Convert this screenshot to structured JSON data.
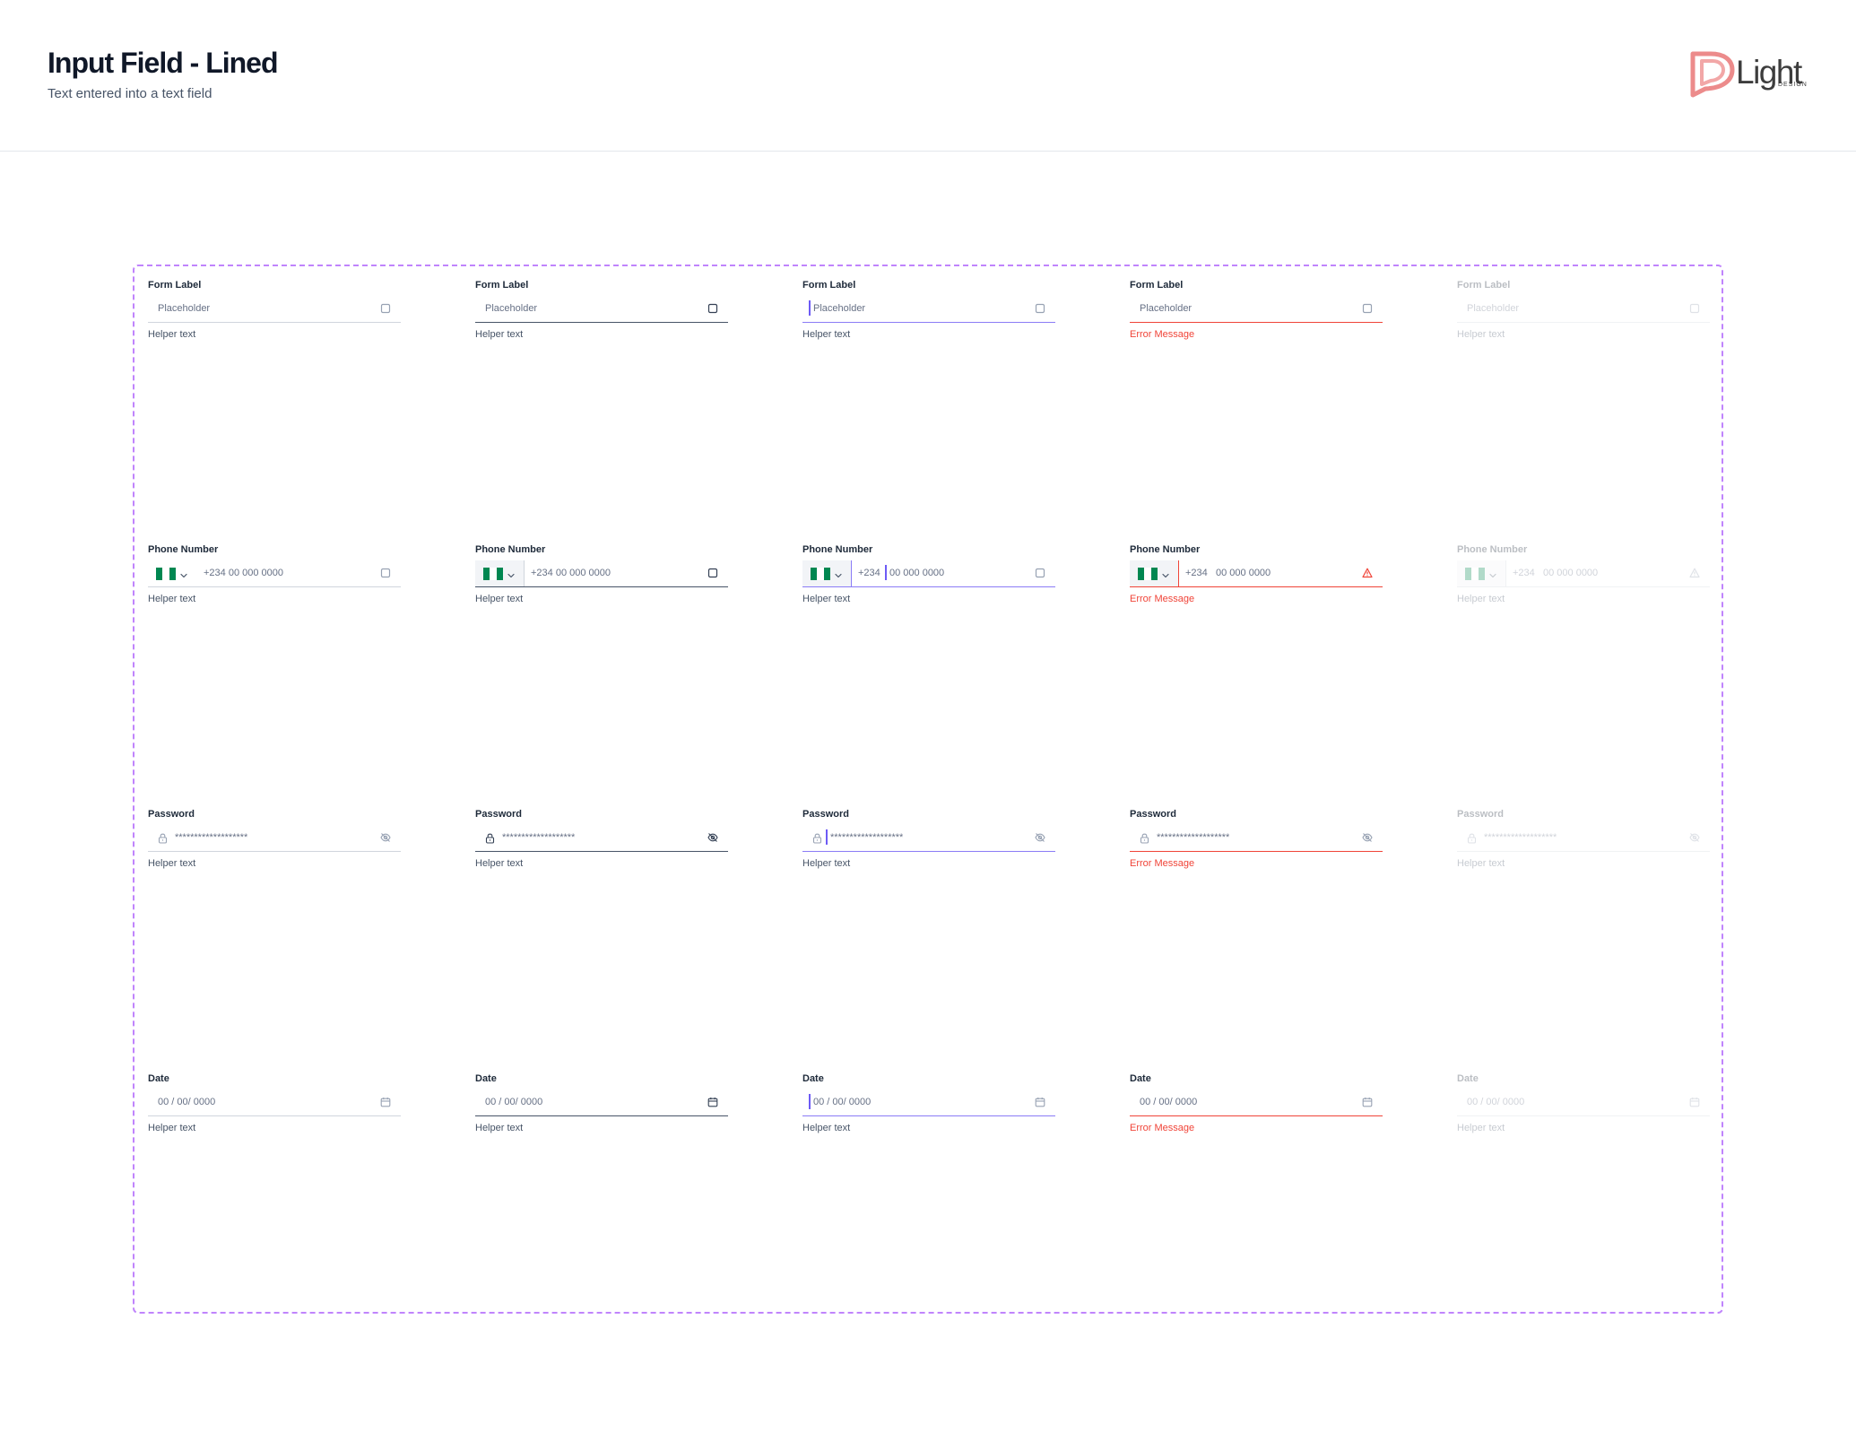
{
  "header": {
    "title": "Input Field - Lined",
    "subtitle": "Text entered into a text field",
    "logo_text": "Light",
    "logo_sub": "DESIGN"
  },
  "colors": {
    "default_line": "#d0d5dd",
    "hover_line": "#475467",
    "focus_accent": "#8b7cf6",
    "error": "#f04438",
    "frame_border": "#c084fc",
    "flag_green": "#008751"
  },
  "states": [
    "default",
    "hover",
    "focused",
    "error",
    "disabled"
  ],
  "icons": {
    "text": "square-icon",
    "phone": "square-icon",
    "phone_error": "alert-triangle-icon",
    "password_prefix": "lock-icon",
    "password": "eye-off-icon",
    "date": "calendar-icon",
    "country": "nigeria-flag-icon",
    "country_dropdown": "chevron-down-icon"
  },
  "rows": [
    {
      "type": "text",
      "fields": [
        {
          "label": "Form Label",
          "placeholder": "Placeholder",
          "helper": "Helper text"
        },
        {
          "label": "Form Label",
          "placeholder": "Placeholder",
          "helper": "Helper text"
        },
        {
          "label": "Form Label",
          "placeholder": "Placeholder",
          "helper": "Helper text"
        },
        {
          "label": "Form Label",
          "placeholder": "Placeholder",
          "helper": "Error Message"
        },
        {
          "label": "Form Label",
          "placeholder": "Placeholder",
          "helper": "Helper text"
        }
      ]
    },
    {
      "type": "phone",
      "fields": [
        {
          "label": "Phone Number",
          "prefix": "",
          "placeholder": "+234 00 000 0000",
          "helper": "Helper text"
        },
        {
          "label": "Phone Number",
          "prefix": "",
          "placeholder": "+234 00 000 0000",
          "helper": "Helper text"
        },
        {
          "label": "Phone Number",
          "prefix": "+234",
          "placeholder": "00 000 0000",
          "helper": "Helper text"
        },
        {
          "label": "Phone Number",
          "prefix": "+234",
          "placeholder": "00 000 0000",
          "helper": "Error Message"
        },
        {
          "label": "Phone Number",
          "prefix": "+234",
          "placeholder": "00 000 0000",
          "helper": "Helper text"
        }
      ]
    },
    {
      "type": "password",
      "fields": [
        {
          "label": "Password",
          "placeholder": "*******************",
          "helper": "Helper text"
        },
        {
          "label": "Password",
          "placeholder": "*******************",
          "helper": "Helper text"
        },
        {
          "label": "Password",
          "placeholder": "*******************",
          "helper": "Helper text"
        },
        {
          "label": "Password",
          "placeholder": "*******************",
          "helper": "Error Message"
        },
        {
          "label": "Password",
          "placeholder": "*******************",
          "helper": "Helper text"
        }
      ]
    },
    {
      "type": "date",
      "fields": [
        {
          "label": "Date",
          "placeholder": "00 / 00/ 0000",
          "helper": "Helper text"
        },
        {
          "label": "Date",
          "placeholder": "00 / 00/ 0000",
          "helper": "Helper text"
        },
        {
          "label": "Date",
          "placeholder": "00 / 00/ 0000",
          "helper": "Helper text"
        },
        {
          "label": "Date",
          "placeholder": "00 / 00/ 0000",
          "helper": "Error Message"
        },
        {
          "label": "Date",
          "placeholder": "00 / 00/ 0000",
          "helper": "Helper text"
        }
      ]
    }
  ]
}
